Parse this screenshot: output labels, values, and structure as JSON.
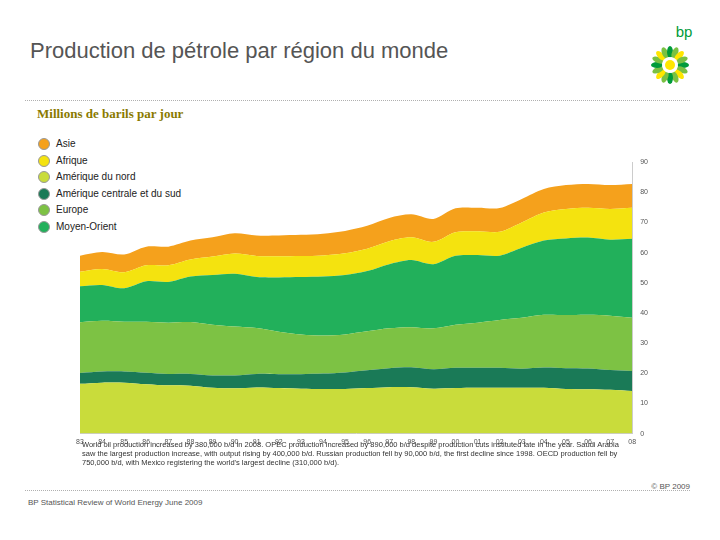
{
  "chart_data": {
    "type": "area",
    "title": "Production de pétrole par région du monde",
    "subtitle": "Millions de barils par jour",
    "categories": [
      "83",
      "84",
      "85",
      "86",
      "87",
      "88",
      "89",
      "90",
      "91",
      "92",
      "93",
      "94",
      "95",
      "96",
      "97",
      "98",
      "99",
      "00",
      "01",
      "02",
      "03",
      "04",
      "05",
      "06",
      "07",
      "08"
    ],
    "series": [
      {
        "name": "Asie",
        "color": "#f5a11c",
        "values": [
          5.3,
          5.6,
          5.9,
          6.2,
          6.2,
          6.3,
          6.4,
          6.7,
          6.8,
          6.9,
          7.0,
          7.2,
          7.4,
          7.6,
          7.7,
          7.6,
          7.6,
          7.9,
          7.8,
          7.9,
          7.8,
          7.8,
          7.9,
          7.9,
          7.9,
          7.9
        ]
      },
      {
        "name": "Afrique",
        "color": "#f4e30f",
        "values": [
          4.8,
          5.3,
          5.3,
          5.3,
          5.5,
          5.6,
          6.1,
          6.7,
          7.0,
          7.0,
          7.0,
          7.0,
          7.2,
          7.4,
          7.6,
          7.5,
          7.4,
          7.8,
          7.9,
          7.9,
          8.4,
          9.3,
          9.8,
          9.9,
          10.2,
          10.3
        ]
      },
      {
        "name": "Amérique du nord",
        "color": "#c9dc3b",
        "values": [
          16.5,
          16.9,
          16.9,
          16.4,
          16.0,
          15.9,
          15.2,
          15.0,
          15.3,
          15.1,
          14.9,
          14.8,
          14.8,
          15.1,
          15.4,
          15.4,
          14.9,
          15.1,
          15.2,
          15.2,
          15.2,
          15.2,
          14.8,
          14.7,
          14.5,
          14.1
        ]
      },
      {
        "name": "Amérique centrale et du sud",
        "color": "#1a7a57",
        "values": [
          3.6,
          3.7,
          3.7,
          3.8,
          3.8,
          3.9,
          4.1,
          4.3,
          4.5,
          4.6,
          4.8,
          5.1,
          5.5,
          5.9,
          6.3,
          6.6,
          6.4,
          6.7,
          6.6,
          6.6,
          6.3,
          6.7,
          6.9,
          6.9,
          6.6,
          6.7
        ]
      },
      {
        "name": "Europe",
        "color": "#7dc244",
        "values": [
          16.8,
          16.8,
          16.5,
          16.9,
          17.0,
          17.2,
          16.8,
          16.2,
          15.2,
          14.1,
          13.2,
          12.6,
          12.6,
          12.9,
          13.2,
          13.3,
          13.6,
          14.3,
          15.0,
          15.9,
          16.9,
          17.5,
          17.6,
          17.8,
          18.0,
          17.6
        ]
      },
      {
        "name": "Moyen-Orient",
        "color": "#22b05b",
        "values": [
          12.0,
          11.9,
          11.1,
          13.4,
          13.5,
          15.1,
          16.5,
          17.5,
          16.9,
          18.0,
          19.0,
          19.6,
          19.7,
          20.0,
          21.3,
          22.3,
          21.3,
          22.9,
          22.4,
          21.3,
          23.2,
          24.6,
          25.4,
          25.6,
          25.2,
          26.2
        ]
      }
    ],
    "stack_order": [
      "Amérique du nord",
      "Amérique centrale et du sud",
      "Europe",
      "Moyen-Orient",
      "Afrique",
      "Asie"
    ],
    "stacked": true,
    "ylim": [
      0,
      90
    ],
    "yticks": [
      0,
      10,
      20,
      30,
      40,
      50,
      60,
      70,
      80,
      90
    ],
    "grid": false,
    "annotations": [
      "World oil production increased by 380,000 b/d in 2008. OPEC production increased by 890,000 b/d despite production cuts instituted late in the year. Saudi Arabia saw the largest production increase, with output rising by 400,000 b/d. Russian production fell by 90,000 b/d, the first decline since 1998. OECD production fell by 750,000 b/d, with Mexico registering the world's largest decline (310,000 b/d)."
    ]
  },
  "slide": {
    "logo": "bp",
    "source": "BP Statistical Review of World Energy June 2009",
    "copyright": "© BP 2009"
  }
}
